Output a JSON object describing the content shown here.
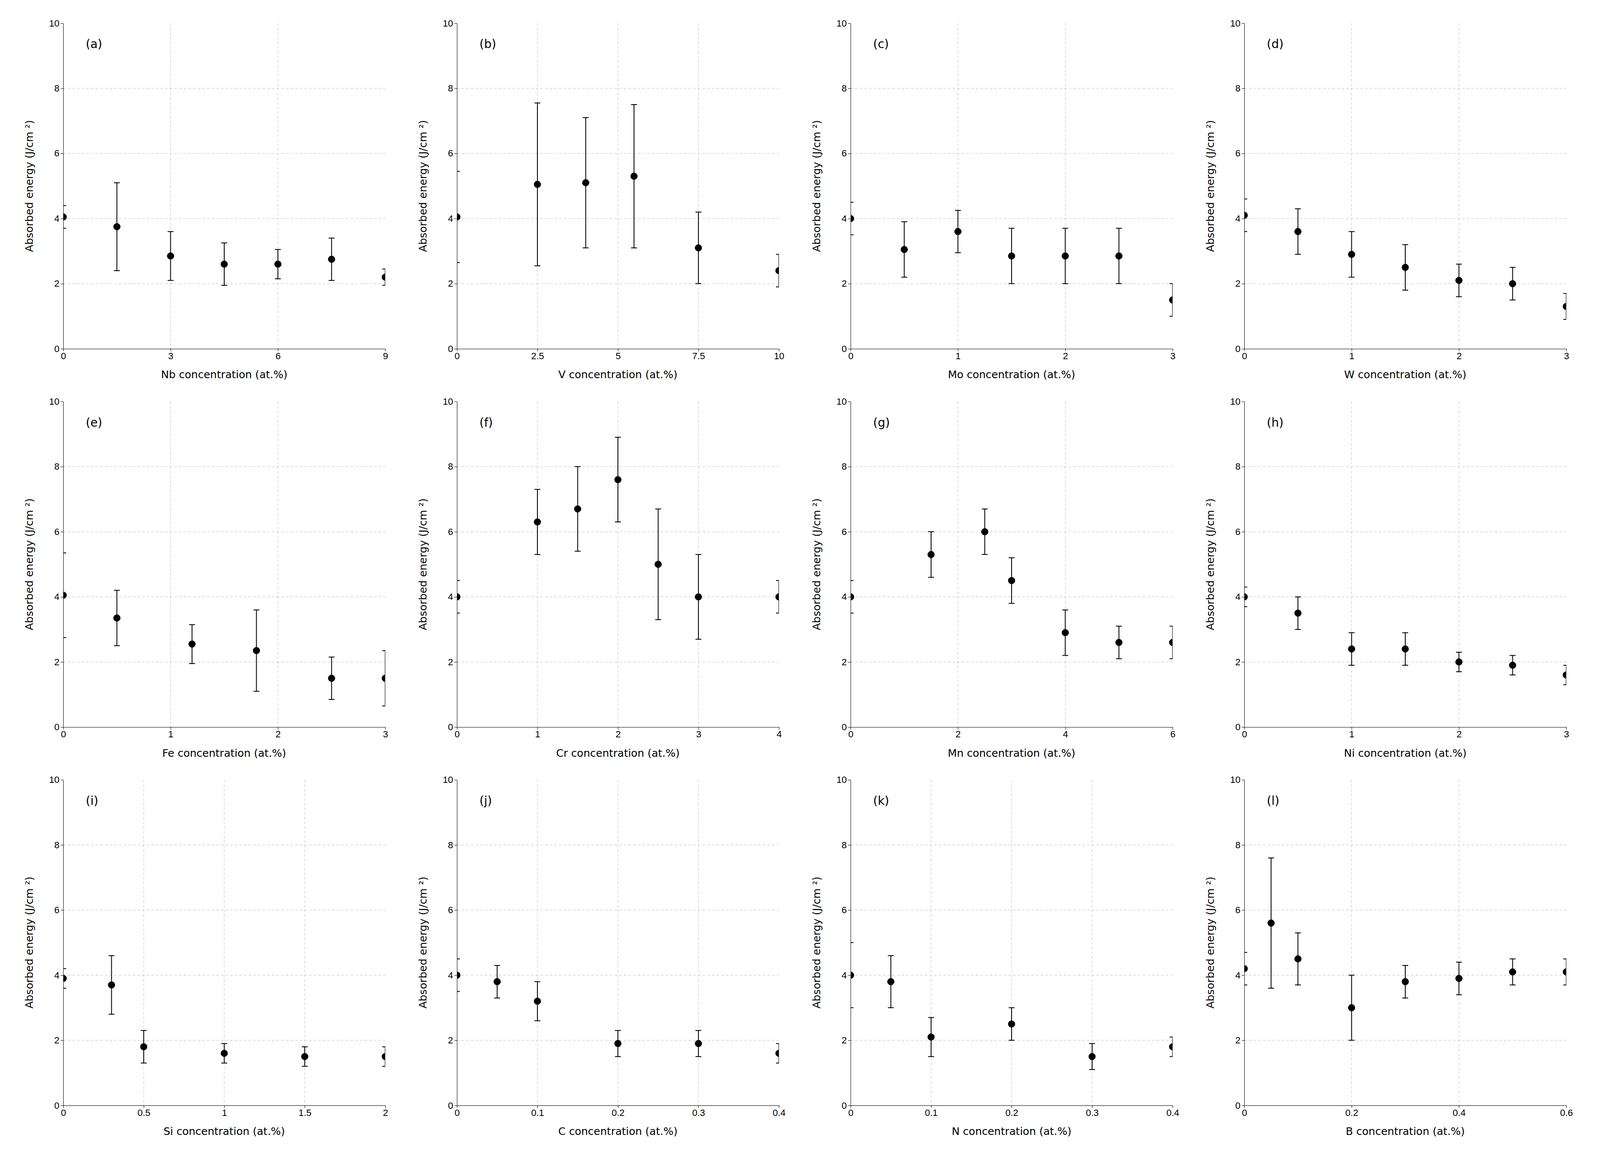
{
  "chart_data": [
    {
      "type": "scatter",
      "annotation": "(a)",
      "xlabel": "Nb concentration (at.%)",
      "ylabel": "Absorbed energy (J/cm ²)",
      "xlim": [
        0,
        9
      ],
      "xticks": [
        0,
        3,
        6,
        9
      ],
      "ylim": [
        0,
        10
      ],
      "yticks": [
        0,
        2,
        4,
        6,
        8,
        10
      ],
      "grid": true,
      "color": "black",
      "marker": "circle",
      "x": [
        0,
        1.5,
        3,
        4.5,
        6,
        7.5,
        9
      ],
      "values": [
        4.05,
        3.75,
        2.85,
        2.6,
        2.6,
        2.75,
        2.2
      ],
      "error_lo": [
        0.35,
        1.35,
        0.75,
        0.65,
        0.45,
        0.65,
        0.25
      ],
      "error_hi": [
        0.35,
        1.35,
        0.75,
        0.65,
        0.45,
        0.65,
        0.25
      ]
    },
    {
      "type": "scatter",
      "annotation": "(b)",
      "xlabel": "V concentration (at.%)",
      "ylabel": "Absorbed energy (J/cm ²)",
      "xlim": [
        0,
        10
      ],
      "xticks": [
        0,
        2.5,
        5,
        7.5,
        10
      ],
      "ylim": [
        0,
        10
      ],
      "yticks": [
        0,
        2,
        4,
        6,
        8,
        10
      ],
      "grid": true,
      "color": "black",
      "marker": "circle",
      "x": [
        0,
        2.5,
        4.0,
        5.5,
        7.5,
        10
      ],
      "values": [
        4.05,
        5.05,
        5.1,
        5.3,
        3.1,
        2.4
      ],
      "error_lo": [
        1.4,
        2.5,
        2.0,
        2.2,
        1.1,
        0.5
      ],
      "error_hi": [
        1.4,
        2.5,
        2.0,
        2.2,
        1.1,
        0.5
      ]
    },
    {
      "type": "scatter",
      "annotation": "(c)",
      "xlabel": "Mo concentration (at.%)",
      "ylabel": "Absorbed energy (J/cm ²)",
      "xlim": [
        0,
        3
      ],
      "xticks": [
        0,
        1,
        2,
        3
      ],
      "ylim": [
        0,
        10
      ],
      "yticks": [
        0,
        2,
        4,
        6,
        8,
        10
      ],
      "grid": true,
      "color": "black",
      "marker": "circle",
      "x": [
        0,
        0.5,
        1.0,
        1.5,
        2.0,
        2.5,
        3.0
      ],
      "values": [
        4.0,
        3.05,
        3.6,
        2.85,
        2.85,
        2.85,
        1.5
      ],
      "error_lo": [
        0.5,
        0.85,
        0.65,
        0.85,
        0.85,
        0.85,
        0.5
      ],
      "error_hi": [
        0.5,
        0.85,
        0.65,
        0.85,
        0.85,
        0.85,
        0.5
      ]
    },
    {
      "type": "scatter",
      "annotation": "(d)",
      "xlabel": "W concentration (at.%)",
      "ylabel": "Absorbed energy (J/cm ²)",
      "xlim": [
        0,
        3
      ],
      "xticks": [
        0,
        1,
        2,
        3
      ],
      "ylim": [
        0,
        10
      ],
      "yticks": [
        0,
        2,
        4,
        6,
        8,
        10
      ],
      "grid": true,
      "color": "black",
      "marker": "circle",
      "x": [
        0,
        0.5,
        1.0,
        1.5,
        2.0,
        2.5,
        3.0
      ],
      "values": [
        4.1,
        3.6,
        2.9,
        2.5,
        2.1,
        2.0,
        1.3
      ],
      "error_lo": [
        0.5,
        0.7,
        0.7,
        0.7,
        0.5,
        0.5,
        0.4
      ],
      "error_hi": [
        0.5,
        0.7,
        0.7,
        0.7,
        0.5,
        0.5,
        0.4
      ]
    },
    {
      "type": "scatter",
      "annotation": "(e)",
      "xlabel": "Fe concentration (at.%)",
      "ylabel": "Absorbed energy (J/cm ²)",
      "xlim": [
        0,
        3
      ],
      "xticks": [
        0,
        1,
        2,
        3
      ],
      "ylim": [
        0,
        10
      ],
      "yticks": [
        0,
        2,
        4,
        6,
        8,
        10
      ],
      "grid": true,
      "color": "black",
      "marker": "circle",
      "x": [
        0,
        0.5,
        1.2,
        1.8,
        2.5,
        3.0
      ],
      "values": [
        4.05,
        3.35,
        2.55,
        2.35,
        1.5,
        1.5
      ],
      "error_lo": [
        1.3,
        0.85,
        0.6,
        1.25,
        0.65,
        0.85
      ],
      "error_hi": [
        1.3,
        0.85,
        0.6,
        1.25,
        0.65,
        0.85
      ]
    },
    {
      "type": "scatter",
      "annotation": "(f)",
      "xlabel": "Cr concentration (at.%)",
      "ylabel": "Absorbed energy (J/cm ²)",
      "xlim": [
        0,
        4
      ],
      "xticks": [
        0,
        1,
        2,
        3,
        4
      ],
      "ylim": [
        0,
        10
      ],
      "yticks": [
        0,
        2,
        4,
        6,
        8,
        10
      ],
      "grid": true,
      "color": "black",
      "marker": "circle",
      "x": [
        0,
        1.0,
        1.5,
        2.0,
        2.5,
        3.0,
        4.0
      ],
      "values": [
        4.0,
        6.3,
        6.7,
        7.6,
        5.0,
        4.0,
        4.0
      ],
      "error_lo": [
        0.5,
        1.0,
        1.3,
        1.3,
        1.7,
        1.3,
        0.5
      ],
      "error_hi": [
        0.5,
        1.0,
        1.3,
        1.3,
        1.7,
        1.3,
        0.5
      ]
    },
    {
      "type": "scatter",
      "annotation": "(g)",
      "xlabel": "Mn concentration (at.%)",
      "ylabel": "Absorbed energy (J/cm ²)",
      "xlim": [
        0,
        6
      ],
      "xticks": [
        0,
        2,
        4,
        6
      ],
      "ylim": [
        0,
        10
      ],
      "yticks": [
        0,
        2,
        4,
        6,
        8,
        10
      ],
      "grid": true,
      "color": "black",
      "marker": "circle",
      "x": [
        0,
        1.5,
        2.5,
        3.0,
        4.0,
        5.0,
        6.0
      ],
      "values": [
        4.0,
        5.3,
        6.0,
        4.5,
        2.9,
        2.6,
        2.6
      ],
      "error_lo": [
        0.5,
        0.7,
        0.7,
        0.7,
        0.7,
        0.5,
        0.5
      ],
      "error_hi": [
        0.5,
        0.7,
        0.7,
        0.7,
        0.7,
        0.5,
        0.5
      ]
    },
    {
      "type": "scatter",
      "annotation": "(h)",
      "xlabel": "Ni concentration (at.%)",
      "ylabel": "Absorbed energy (J/cm ²)",
      "xlim": [
        0,
        3
      ],
      "xticks": [
        0,
        1,
        2,
        3
      ],
      "ylim": [
        0,
        10
      ],
      "yticks": [
        0,
        2,
        4,
        6,
        8,
        10
      ],
      "grid": true,
      "color": "black",
      "marker": "circle",
      "x": [
        0,
        0.5,
        1.0,
        1.5,
        2.0,
        2.5,
        3.0
      ],
      "values": [
        4.0,
        3.5,
        2.4,
        2.4,
        2.0,
        1.9,
        1.6
      ],
      "error_lo": [
        0.3,
        0.5,
        0.5,
        0.5,
        0.3,
        0.3,
        0.3
      ],
      "error_hi": [
        0.3,
        0.5,
        0.5,
        0.5,
        0.3,
        0.3,
        0.3
      ]
    },
    {
      "type": "scatter",
      "annotation": "(i)",
      "xlabel": "Si concentration (at.%)",
      "ylabel": "Absorbed energy (J/cm ²)",
      "xlim": [
        0,
        2
      ],
      "xticks": [
        0,
        0.5,
        1.0,
        1.5,
        2.0
      ],
      "ylim": [
        0,
        10
      ],
      "yticks": [
        0,
        2,
        4,
        6,
        8,
        10
      ],
      "grid": true,
      "color": "black",
      "marker": "circle",
      "x": [
        0,
        0.3,
        0.5,
        1.0,
        1.5,
        2.0
      ],
      "values": [
        3.9,
        3.7,
        1.8,
        1.6,
        1.5,
        1.5
      ],
      "error_lo": [
        0.3,
        0.9,
        0.5,
        0.3,
        0.3,
        0.3
      ],
      "error_hi": [
        0.3,
        0.9,
        0.5,
        0.3,
        0.3,
        0.3
      ]
    },
    {
      "type": "scatter",
      "annotation": "(j)",
      "xlabel": "C concentration (at.%)",
      "ylabel": "Absorbed energy (J/cm ²)",
      "xlim": [
        0,
        0.4
      ],
      "xticks": [
        0,
        0.1,
        0.2,
        0.3,
        0.4
      ],
      "ylim": [
        0,
        10
      ],
      "yticks": [
        0,
        2,
        4,
        6,
        8,
        10
      ],
      "grid": true,
      "color": "black",
      "marker": "circle",
      "x": [
        0,
        0.05,
        0.1,
        0.2,
        0.3,
        0.4
      ],
      "values": [
        4.0,
        3.8,
        3.2,
        1.9,
        1.9,
        1.6
      ],
      "error_lo": [
        0.5,
        0.5,
        0.6,
        0.4,
        0.4,
        0.3
      ],
      "error_hi": [
        0.5,
        0.5,
        0.6,
        0.4,
        0.4,
        0.3
      ]
    },
    {
      "type": "scatter",
      "annotation": "(k)",
      "xlabel": "N concentration (at.%)",
      "ylabel": "Absorbed energy (J/cm ²)",
      "xlim": [
        0,
        0.4
      ],
      "xticks": [
        0,
        0.1,
        0.2,
        0.3,
        0.4
      ],
      "ylim": [
        0,
        10
      ],
      "yticks": [
        0,
        2,
        4,
        6,
        8,
        10
      ],
      "grid": true,
      "color": "black",
      "marker": "circle",
      "x": [
        0,
        0.05,
        0.1,
        0.2,
        0.3,
        0.4
      ],
      "values": [
        4.0,
        3.8,
        2.1,
        2.5,
        1.5,
        1.8
      ],
      "error_lo": [
        1.0,
        0.8,
        0.6,
        0.5,
        0.4,
        0.3
      ],
      "error_hi": [
        1.0,
        0.8,
        0.6,
        0.5,
        0.4,
        0.3
      ]
    },
    {
      "type": "scatter",
      "annotation": "(l)",
      "xlabel": "B concentration (at.%)",
      "ylabel": "Absorbed energy (J/cm ²)",
      "xlim": [
        0,
        0.6
      ],
      "xticks": [
        0,
        0.2,
        0.4,
        0.6
      ],
      "ylim": [
        0,
        10
      ],
      "yticks": [
        0,
        2,
        4,
        6,
        8,
        10
      ],
      "grid": true,
      "color": "black",
      "marker": "circle",
      "x": [
        0,
        0.05,
        0.1,
        0.2,
        0.3,
        0.4,
        0.5,
        0.6
      ],
      "values": [
        4.2,
        5.6,
        4.5,
        3.0,
        3.8,
        3.9,
        4.1,
        4.1
      ],
      "error_lo": [
        0.5,
        2.0,
        0.8,
        1.0,
        0.5,
        0.5,
        0.4,
        0.4
      ],
      "error_hi": [
        0.5,
        2.0,
        0.8,
        1.0,
        0.5,
        0.5,
        0.4,
        0.4
      ]
    }
  ]
}
